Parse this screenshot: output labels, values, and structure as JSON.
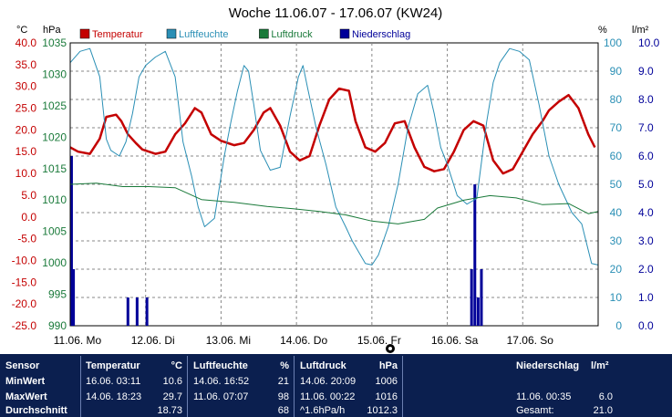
{
  "colors": {
    "temperature": "#c40000",
    "humidity": "#2a8fb5",
    "pressure": "#1a7a3a",
    "rain": "#000099",
    "temp_axis": "#c40000",
    "pressure_axis": "#1a7a3a",
    "humidity_axis": "#2a8fb5",
    "rain_axis": "#000099",
    "stats_bg": "#0b1f4f"
  },
  "chart_data": {
    "type": "line",
    "title": "Woche 11.06.07 - 17.06.07 (KW24)",
    "x_categories": [
      "11.06. Mo",
      "12.06. Di",
      "13.06. Mi",
      "14.06. Do",
      "15.06. Fr",
      "16.06. Sa",
      "17.06. So"
    ],
    "x_range_days": [
      0,
      7
    ],
    "axes": {
      "temperature": {
        "unit": "°C",
        "range": [
          -25,
          40
        ],
        "ticks": [
          "40.0",
          "35.0",
          "30.0",
          "25.0",
          "20.0",
          "15.0",
          "10.0",
          "5.0",
          "0.0",
          "-5.0",
          "-10.0",
          "-15.0",
          "-20.0",
          "-25.0"
        ]
      },
      "pressure": {
        "unit": "hPa",
        "range": [
          990,
          1040
        ],
        "ticks": [
          "1035",
          "1030",
          "1025",
          "1020",
          "1015",
          "1010",
          "1005",
          "1000",
          "995",
          "990"
        ]
      },
      "humidity": {
        "unit": "%",
        "range": [
          0,
          100
        ],
        "ticks": [
          "100",
          "90",
          "80",
          "70",
          "60",
          "50",
          "40",
          "30",
          "20",
          "10",
          "0"
        ]
      },
      "rain": {
        "unit": "l/m²",
        "range": [
          0,
          10
        ],
        "ticks": [
          "10.0",
          "9.0",
          "8.0",
          "7.0",
          "6.0",
          "5.0",
          "4.0",
          "3.0",
          "2.0",
          "1.0",
          "0.0"
        ]
      }
    },
    "grid": true,
    "legend_position": "top",
    "series": [
      {
        "name": "Temperatur",
        "axis": "temperature",
        "points": [
          [
            0,
            16
          ],
          [
            0.12,
            15
          ],
          [
            0.3,
            14.5
          ],
          [
            0.45,
            18
          ],
          [
            0.55,
            23
          ],
          [
            0.7,
            23.5
          ],
          [
            0.78,
            22
          ],
          [
            0.88,
            19
          ],
          [
            1.0,
            17
          ],
          [
            1.1,
            15.5
          ],
          [
            1.3,
            14.5
          ],
          [
            1.45,
            15
          ],
          [
            1.6,
            19
          ],
          [
            1.75,
            21.5
          ],
          [
            1.9,
            25
          ],
          [
            2.0,
            24
          ],
          [
            2.15,
            19
          ],
          [
            2.3,
            17.5
          ],
          [
            2.5,
            16.5
          ],
          [
            2.65,
            17
          ],
          [
            2.8,
            20
          ],
          [
            2.95,
            24
          ],
          [
            3.05,
            25
          ],
          [
            3.2,
            21
          ],
          [
            3.35,
            15
          ],
          [
            3.5,
            13
          ],
          [
            3.65,
            14
          ],
          [
            3.8,
            21
          ],
          [
            3.95,
            27
          ],
          [
            4.1,
            29.5
          ],
          [
            4.25,
            29
          ],
          [
            4.35,
            22
          ],
          [
            4.5,
            16
          ],
          [
            4.65,
            15
          ],
          [
            4.8,
            17
          ],
          [
            4.95,
            21.5
          ],
          [
            5.1,
            22
          ],
          [
            5.25,
            16
          ],
          [
            5.4,
            11.5
          ],
          [
            5.55,
            10.5
          ],
          [
            5.7,
            11
          ],
          [
            5.85,
            15
          ],
          [
            6.0,
            20
          ],
          [
            6.15,
            22
          ],
          [
            6.3,
            21
          ],
          [
            6.45,
            13
          ],
          [
            6.6,
            10
          ],
          [
            6.75,
            11
          ],
          [
            6.9,
            15
          ],
          [
            7.05,
            19
          ],
          [
            7.2,
            22
          ],
          [
            7.3,
            24.5
          ],
          [
            7.45,
            26.5
          ],
          [
            7.6,
            28
          ],
          [
            7.75,
            25
          ],
          [
            7.9,
            19
          ],
          [
            8.0,
            16
          ]
        ]
      },
      {
        "name": "Luftfeuchte",
        "axis": "humidity",
        "points": [
          [
            0,
            93
          ],
          [
            0.15,
            97
          ],
          [
            0.3,
            98
          ],
          [
            0.45,
            88
          ],
          [
            0.55,
            66
          ],
          [
            0.62,
            62
          ],
          [
            0.75,
            60
          ],
          [
            0.85,
            65
          ],
          [
            0.95,
            75
          ],
          [
            1.05,
            88
          ],
          [
            1.15,
            92
          ],
          [
            1.3,
            95
          ],
          [
            1.45,
            97
          ],
          [
            1.6,
            88
          ],
          [
            1.72,
            65
          ],
          [
            1.85,
            53
          ],
          [
            1.95,
            42
          ],
          [
            2.05,
            35
          ],
          [
            2.2,
            38
          ],
          [
            2.35,
            60
          ],
          [
            2.45,
            72
          ],
          [
            2.55,
            83
          ],
          [
            2.65,
            92
          ],
          [
            2.72,
            90
          ],
          [
            2.8,
            78
          ],
          [
            2.9,
            62
          ],
          [
            3.05,
            55
          ],
          [
            3.2,
            56
          ],
          [
            3.35,
            74
          ],
          [
            3.48,
            88
          ],
          [
            3.55,
            92
          ],
          [
            3.62,
            84
          ],
          [
            3.75,
            70
          ],
          [
            3.9,
            57
          ],
          [
            4.05,
            42
          ],
          [
            4.2,
            35
          ],
          [
            4.3,
            30
          ],
          [
            4.4,
            26
          ],
          [
            4.5,
            22
          ],
          [
            4.6,
            21.5
          ],
          [
            4.7,
            25
          ],
          [
            4.85,
            35
          ],
          [
            5.0,
            50
          ],
          [
            5.15,
            70
          ],
          [
            5.3,
            82
          ],
          [
            5.45,
            85
          ],
          [
            5.55,
            75
          ],
          [
            5.65,
            63
          ],
          [
            5.75,
            57
          ],
          [
            5.9,
            46
          ],
          [
            6.05,
            43
          ],
          [
            6.2,
            45
          ],
          [
            6.35,
            72
          ],
          [
            6.45,
            86
          ],
          [
            6.55,
            93
          ],
          [
            6.7,
            98
          ],
          [
            6.85,
            97
          ],
          [
            7.0,
            94
          ],
          [
            7.15,
            78
          ],
          [
            7.3,
            60
          ],
          [
            7.45,
            50
          ],
          [
            7.55,
            45
          ],
          [
            7.65,
            40
          ],
          [
            7.8,
            36
          ],
          [
            7.95,
            22
          ],
          [
            8.05,
            21.5
          ]
        ]
      },
      {
        "name": "Luftdruck",
        "axis": "pressure",
        "points": [
          [
            0,
            1015
          ],
          [
            0.4,
            1015.2
          ],
          [
            0.8,
            1014.6
          ],
          [
            1.2,
            1014.6
          ],
          [
            1.6,
            1014.4
          ],
          [
            2.0,
            1012.3
          ],
          [
            2.5,
            1011.8
          ],
          [
            3.0,
            1011.1
          ],
          [
            3.4,
            1010.7
          ],
          [
            3.8,
            1010.2
          ],
          [
            4.2,
            1009.6
          ],
          [
            4.6,
            1008.5
          ],
          [
            5.0,
            1008.0
          ],
          [
            5.4,
            1008.8
          ],
          [
            5.6,
            1010.8
          ],
          [
            6.0,
            1012.2
          ],
          [
            6.4,
            1013.0
          ],
          [
            6.8,
            1012.6
          ],
          [
            7.2,
            1011.4
          ],
          [
            7.6,
            1011.6
          ],
          [
            7.9,
            1009.8
          ],
          [
            8.05,
            1010.2
          ]
        ]
      },
      {
        "name": "Niederschlag",
        "axis": "rain",
        "type": "bar",
        "bars": [
          [
            0.02,
            6.0
          ],
          [
            0.05,
            2.0
          ],
          [
            0.88,
            1.0
          ],
          [
            1.02,
            1.0
          ],
          [
            1.17,
            1.0
          ],
          [
            6.12,
            2.0
          ],
          [
            6.17,
            5.0
          ],
          [
            6.22,
            1.0
          ],
          [
            6.27,
            2.0
          ]
        ]
      }
    ]
  },
  "legend": [
    {
      "label": "Temperatur",
      "color_key": "temperature"
    },
    {
      "label": "Luftfeuchte",
      "color_key": "humidity"
    },
    {
      "label": "Luftdruck",
      "color_key": "pressure"
    },
    {
      "label": "Niederschlag",
      "color_key": "rain"
    }
  ],
  "stats": {
    "sensor": {
      "header": "Sensor",
      "rows": [
        "MinWert",
        "MaxWert",
        "Durchschnitt"
      ]
    },
    "temperatur": {
      "header": "Temperatur",
      "unit": "°C",
      "min": {
        "time": "16.06.  03:11",
        "value": "10.6"
      },
      "max": {
        "time": "14.06.  18:23",
        "value": "29.7"
      },
      "avg": {
        "value": "18.73"
      }
    },
    "luftfeuchte": {
      "header": "Luftfeuchte",
      "unit": "%",
      "min": {
        "time": "14.06.  16:52",
        "value": "21"
      },
      "max": {
        "time": "11.06.  07:07",
        "value": "98"
      },
      "avg": {
        "value": "68"
      }
    },
    "luftdruck": {
      "header": "Luftdruck",
      "unit": "hPa",
      "min": {
        "time": "14.06.  20:09",
        "value": "1006"
      },
      "max": {
        "time": "11.06.  00:22",
        "value": "1016"
      },
      "avg": {
        "time": "^1.6hPa/h",
        "value": "1012.3"
      }
    },
    "niederschlag": {
      "header": "Niederschlag",
      "unit": "l/m²",
      "max": {
        "time": "11.06.  00:35",
        "value": "6.0"
      },
      "total": {
        "label": "Gesamt:",
        "value": "21.0"
      }
    }
  }
}
